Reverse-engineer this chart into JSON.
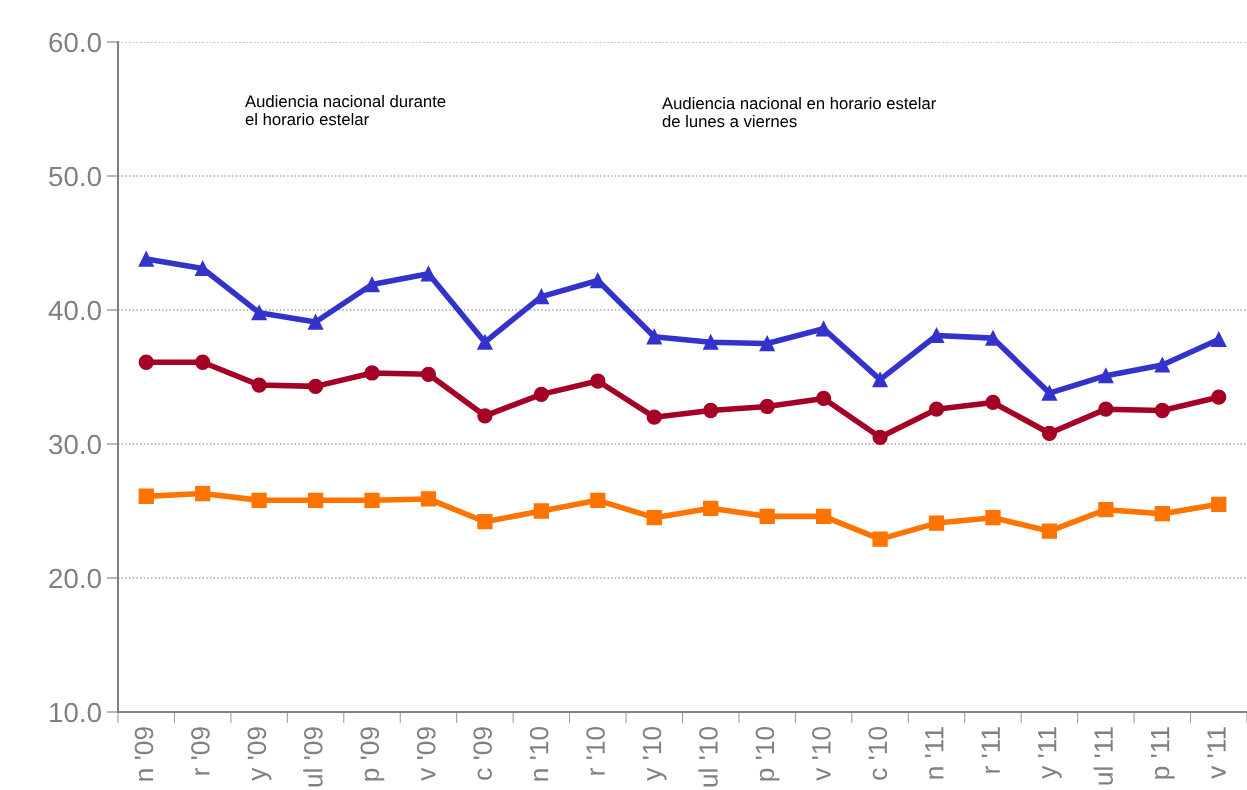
{
  "chart_data": {
    "type": "line",
    "categories": [
      "n '09",
      "r '09",
      "y '09",
      "ul '09",
      "p '09",
      "v '09",
      "c '09",
      "n '10",
      "r '10",
      "y '10",
      "ul '10",
      "p '10",
      "v '10",
      "c '10",
      "n '11",
      "r '11",
      "y '11",
      "ul '11",
      "p '11",
      "v '11"
    ],
    "series": [
      {
        "color": "#3333cc",
        "marker": "triangle",
        "values": [
          43.8,
          43.1,
          39.8,
          39.1,
          41.9,
          42.7,
          37.6,
          41.0,
          42.2,
          38.0,
          37.6,
          37.5,
          38.6,
          34.8,
          38.1,
          37.9,
          33.8,
          35.1,
          35.9,
          37.8
        ]
      },
      {
        "color": "#a50026",
        "marker": "circle",
        "values": [
          36.1,
          36.1,
          34.4,
          34.3,
          35.3,
          35.2,
          32.1,
          33.7,
          34.7,
          32.0,
          32.5,
          32.8,
          33.4,
          30.5,
          32.6,
          33.1,
          30.8,
          32.6,
          32.5,
          33.5
        ]
      },
      {
        "color": "#ff7300",
        "marker": "square",
        "values": [
          26.1,
          26.3,
          25.8,
          25.8,
          25.8,
          25.9,
          24.2,
          25.0,
          25.8,
          24.5,
          25.2,
          24.6,
          24.6,
          22.9,
          24.1,
          24.5,
          23.5,
          25.1,
          24.8,
          25.5
        ]
      }
    ],
    "ylim": [
      10,
      60
    ],
    "yticks": [
      {
        "value": 10,
        "label": "10.0"
      },
      {
        "value": 20,
        "label": "20.0"
      },
      {
        "value": 30,
        "label": "30.0"
      },
      {
        "value": 40,
        "label": "40.0"
      },
      {
        "value": 50,
        "label": "50.0"
      },
      {
        "value": 60,
        "label": "60.0"
      }
    ],
    "grid": "y",
    "annotations": [
      "Audiencia nacional durante\nel horario estelar",
      "Audiencia nacional en horario estelar\nde lunes a viernes"
    ]
  }
}
